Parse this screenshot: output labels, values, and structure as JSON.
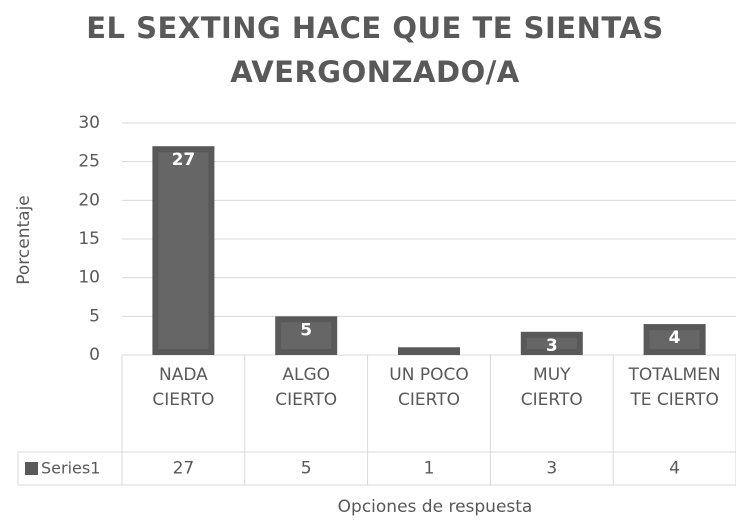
{
  "chart_data": {
    "type": "bar",
    "title": "EL SEXTING HACE QUE TE SIENTAS AVERGONZADO/A",
    "x_label": "Opciones de respuesta",
    "y_label": "Porcentaje",
    "categories": [
      "NADA CIERTO",
      "ALGO CIERTO",
      "UN POCO CIERTO",
      "MUY CIERTO",
      "TOTALMENTE CIERTO"
    ],
    "series": [
      {
        "name": "Series1",
        "color": "#595959",
        "values": [
          27,
          5,
          1,
          3,
          4
        ]
      }
    ],
    "ylim": [
      0,
      30
    ],
    "yticks": [
      0,
      5,
      10,
      15,
      20,
      25,
      30
    ],
    "grid": true,
    "data_table": true
  }
}
